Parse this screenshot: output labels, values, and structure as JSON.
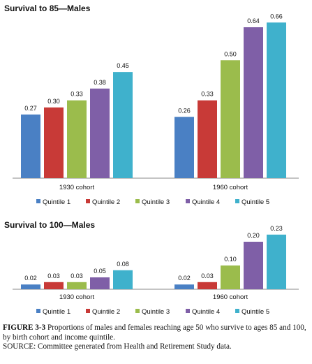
{
  "chart_data": [
    {
      "type": "bar",
      "title": "Survival to 85—Males",
      "categories": [
        "1930 cohort",
        "1960 cohort"
      ],
      "series": [
        {
          "name": "Quintile 1",
          "values": [
            0.27,
            0.26
          ]
        },
        {
          "name": "Quintile 2",
          "values": [
            0.3,
            0.33
          ]
        },
        {
          "name": "Quintile 3",
          "values": [
            0.33,
            0.5
          ]
        },
        {
          "name": "Quintile 4",
          "values": [
            0.38,
            0.64
          ]
        },
        {
          "name": "Quintile 5",
          "values": [
            0.45,
            0.66
          ]
        }
      ],
      "value_labels": [
        [
          "0.27",
          "0.30",
          "0.33",
          "0.38",
          "0.45"
        ],
        [
          "0.26",
          "0.33",
          "0.50",
          "0.64",
          "0.66"
        ]
      ],
      "ylim": [
        0,
        0.72
      ],
      "grid": false,
      "legend_position": "bottom"
    },
    {
      "type": "bar",
      "title": "Survival to 100—Males",
      "categories": [
        "1930 cohort",
        "1960 cohort"
      ],
      "series": [
        {
          "name": "Quintile 1",
          "values": [
            0.02,
            0.02
          ]
        },
        {
          "name": "Quintile 2",
          "values": [
            0.03,
            0.03
          ]
        },
        {
          "name": "Quintile 3",
          "values": [
            0.03,
            0.1
          ]
        },
        {
          "name": "Quintile 4",
          "values": [
            0.05,
            0.2
          ]
        },
        {
          "name": "Quintile 5",
          "values": [
            0.08,
            0.23
          ]
        }
      ],
      "value_labels": [
        [
          "0.02",
          "0.03",
          "0.03",
          "0.05",
          "0.08"
        ],
        [
          "0.02",
          "0.03",
          "0.10",
          "0.20",
          "0.23"
        ]
      ],
      "ylim": [
        0,
        0.25
      ],
      "grid": false,
      "legend_position": "bottom"
    }
  ],
  "colors": [
    "#4a80c4",
    "#c83a37",
    "#9bbc4c",
    "#7f5fa7",
    "#3fb1cc"
  ],
  "caption": {
    "label": "FIGURE 3-3",
    "text": "Proportions of males and females reaching age 50 who survive to ages 85 and 100, by birth cohort and income quintile.",
    "source": "SOURCE: Committee generated from Health and Retirement Study data."
  }
}
